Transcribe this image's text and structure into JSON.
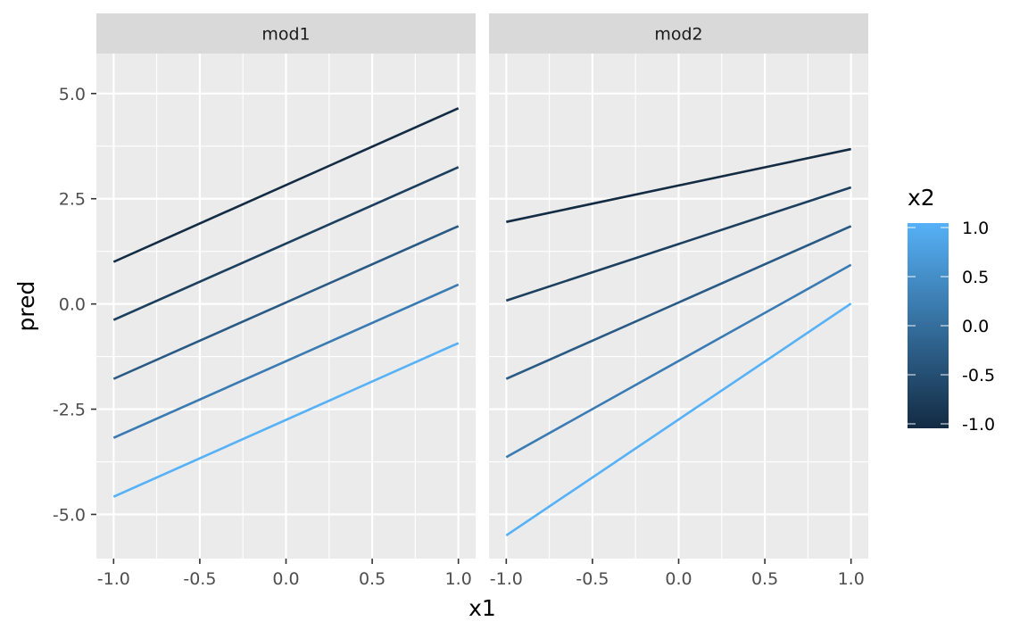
{
  "chart_data": {
    "type": "line",
    "xlabel": "x1",
    "ylabel": "pred",
    "xlim": [
      -1.1,
      1.1
    ],
    "ylim": [
      -6.05,
      5.95
    ],
    "x_ticks": [
      -1.0,
      -0.5,
      0.0,
      0.5,
      1.0
    ],
    "x_tick_labels": [
      "-1.0",
      "-0.5",
      "0.0",
      "0.5",
      "1.0"
    ],
    "y_ticks": [
      -5.0,
      -2.5,
      0.0,
      2.5,
      5.0
    ],
    "y_tick_labels": [
      "-5.0",
      "-2.5",
      "0.0",
      "2.5",
      "5.0"
    ],
    "grid": true,
    "panels": [
      {
        "label": "mod1",
        "series": [
          {
            "x2": -1.0,
            "color": "#132b43",
            "x": [
              -1.0,
              1.0
            ],
            "y": [
              1.0,
              4.65
            ]
          },
          {
            "x2": -0.5,
            "color": "#1d3f5e",
            "x": [
              -1.0,
              1.0
            ],
            "y": [
              -0.38,
              3.25
            ]
          },
          {
            "x2": 0.0,
            "color": "#2a5a84",
            "x": [
              -1.0,
              1.0
            ],
            "y": [
              -1.78,
              1.85
            ]
          },
          {
            "x2": 0.5,
            "color": "#3a7bb3",
            "x": [
              -1.0,
              1.0
            ],
            "y": [
              -3.18,
              0.46
            ]
          },
          {
            "x2": 1.0,
            "color": "#56b1f7",
            "x": [
              -1.0,
              1.0
            ],
            "y": [
              -4.58,
              -0.93
            ]
          }
        ]
      },
      {
        "label": "mod2",
        "series": [
          {
            "x2": -1.0,
            "color": "#132b43",
            "x": [
              -1.0,
              1.0
            ],
            "y": [
              1.95,
              3.68
            ]
          },
          {
            "x2": -0.5,
            "color": "#1d3f5e",
            "x": [
              -1.0,
              1.0
            ],
            "y": [
              0.08,
              2.77
            ]
          },
          {
            "x2": 0.0,
            "color": "#2a5a84",
            "x": [
              -1.0,
              1.0
            ],
            "y": [
              -1.78,
              1.85
            ]
          },
          {
            "x2": 0.5,
            "color": "#3a7bb3",
            "x": [
              -1.0,
              1.0
            ],
            "y": [
              -3.64,
              0.93
            ]
          },
          {
            "x2": 1.0,
            "color": "#56b1f7",
            "x": [
              -1.0,
              1.0
            ],
            "y": [
              -5.5,
              0.01
            ]
          }
        ]
      }
    ],
    "legend": {
      "title": "x2",
      "type": "colorbar",
      "placement": "right",
      "low_color": "#132b43",
      "high_color": "#56b1f7",
      "range": [
        -1.0,
        1.0
      ],
      "ticks": [
        1.0,
        0.5,
        0.0,
        -0.5,
        -1.0
      ],
      "tick_labels": [
        "1.0",
        "0.5",
        "0.0",
        "-0.5",
        "-1.0"
      ]
    },
    "colors": {
      "panel_background": "#ebebeb",
      "strip_background": "#d9d9d9",
      "grid": "#ffffff"
    }
  }
}
